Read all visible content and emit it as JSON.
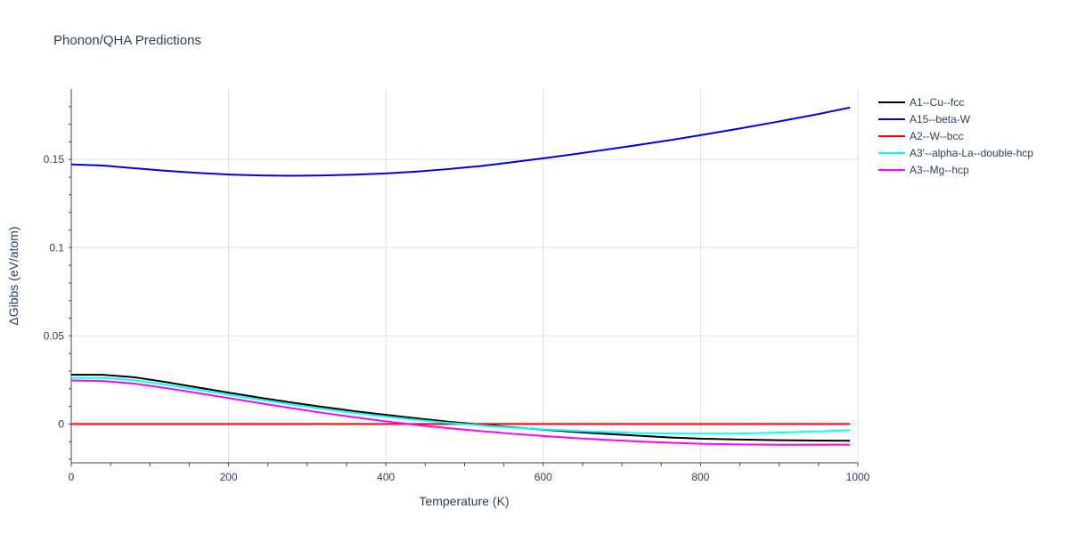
{
  "chart_data": {
    "type": "line",
    "title": "Phonon/QHA Predictions",
    "xlabel": "Temperature (K)",
    "ylabel": "ΔGibbs (eV/atom)",
    "xlim": [
      0,
      1000
    ],
    "ylim": [
      -0.022,
      0.19
    ],
    "xticks": [
      0,
      200,
      400,
      600,
      800,
      1000
    ],
    "xtick_labels": [
      "0",
      "200",
      "400",
      "600",
      "800",
      "1000"
    ],
    "yticks": [
      0,
      0.05,
      0.1,
      0.15
    ],
    "ytick_labels": [
      "0",
      "0.05",
      "0.1",
      "0.15"
    ],
    "grid": true,
    "legend_position": "top-right outside",
    "series": [
      {
        "name": "A1--Cu--fcc",
        "color": "#000000",
        "x": [
          0,
          40,
          80,
          120,
          160,
          200,
          240,
          280,
          320,
          360,
          400,
          440,
          480,
          520,
          560,
          600,
          640,
          680,
          720,
          760,
          800,
          850,
          900,
          950,
          990
        ],
        "y": [
          0.028,
          0.0279,
          0.0265,
          0.0238,
          0.0208,
          0.0178,
          0.0149,
          0.0122,
          0.0097,
          0.0073,
          0.0052,
          0.0032,
          0.0013,
          -0.0003,
          -0.0018,
          -0.0032,
          -0.0045,
          -0.0056,
          -0.0066,
          -0.0076,
          -0.0083,
          -0.0088,
          -0.0092,
          -0.0094,
          -0.0095
        ]
      },
      {
        "name": "A15--beta-W",
        "color": "#0000dd",
        "x": [
          0,
          40,
          80,
          120,
          160,
          200,
          240,
          280,
          320,
          360,
          400,
          440,
          480,
          520,
          560,
          600,
          640,
          680,
          720,
          760,
          800,
          850,
          900,
          950,
          990
        ],
        "y": [
          0.1472,
          0.1466,
          0.1451,
          0.1436,
          0.1424,
          0.1415,
          0.141,
          0.1408,
          0.141,
          0.1414,
          0.1421,
          0.1432,
          0.1446,
          0.1463,
          0.1484,
          0.1507,
          0.1531,
          0.1556,
          0.1582,
          0.1609,
          0.1638,
          0.1676,
          0.1716,
          0.1758,
          0.1795
        ]
      },
      {
        "name": "A2--W--bcc",
        "color": "#ff0000",
        "x": [
          0,
          990
        ],
        "y": [
          0,
          0
        ]
      },
      {
        "name": "A3'--alpha-La--double-hcp",
        "color": "#00ffff",
        "x": [
          0,
          40,
          80,
          120,
          160,
          200,
          240,
          280,
          320,
          360,
          400,
          440,
          480,
          520,
          560,
          600,
          640,
          680,
          720,
          760,
          800,
          850,
          900,
          950,
          990
        ],
        "y": [
          0.0262,
          0.0261,
          0.0248,
          0.0223,
          0.0195,
          0.0166,
          0.0138,
          0.0111,
          0.0086,
          0.0063,
          0.0042,
          0.0023,
          0.0006,
          -0.0008,
          -0.002,
          -0.003,
          -0.0039,
          -0.0046,
          -0.0051,
          -0.0054,
          -0.0055,
          -0.0054,
          -0.0049,
          -0.0042,
          -0.0036
        ]
      },
      {
        "name": "A3--Mg--hcp",
        "color": "#ff00ff",
        "x": [
          0,
          40,
          80,
          120,
          160,
          200,
          240,
          280,
          320,
          360,
          400,
          440,
          480,
          520,
          560,
          600,
          640,
          680,
          720,
          760,
          800,
          850,
          900,
          950,
          990
        ],
        "y": [
          0.0247,
          0.0244,
          0.0229,
          0.0204,
          0.0176,
          0.0147,
          0.0118,
          0.009,
          0.0063,
          0.0038,
          0.0015,
          -0.0006,
          -0.0024,
          -0.004,
          -0.0055,
          -0.0068,
          -0.008,
          -0.009,
          -0.0099,
          -0.0106,
          -0.0112,
          -0.0116,
          -0.0118,
          -0.0118,
          -0.0117
        ]
      }
    ]
  }
}
